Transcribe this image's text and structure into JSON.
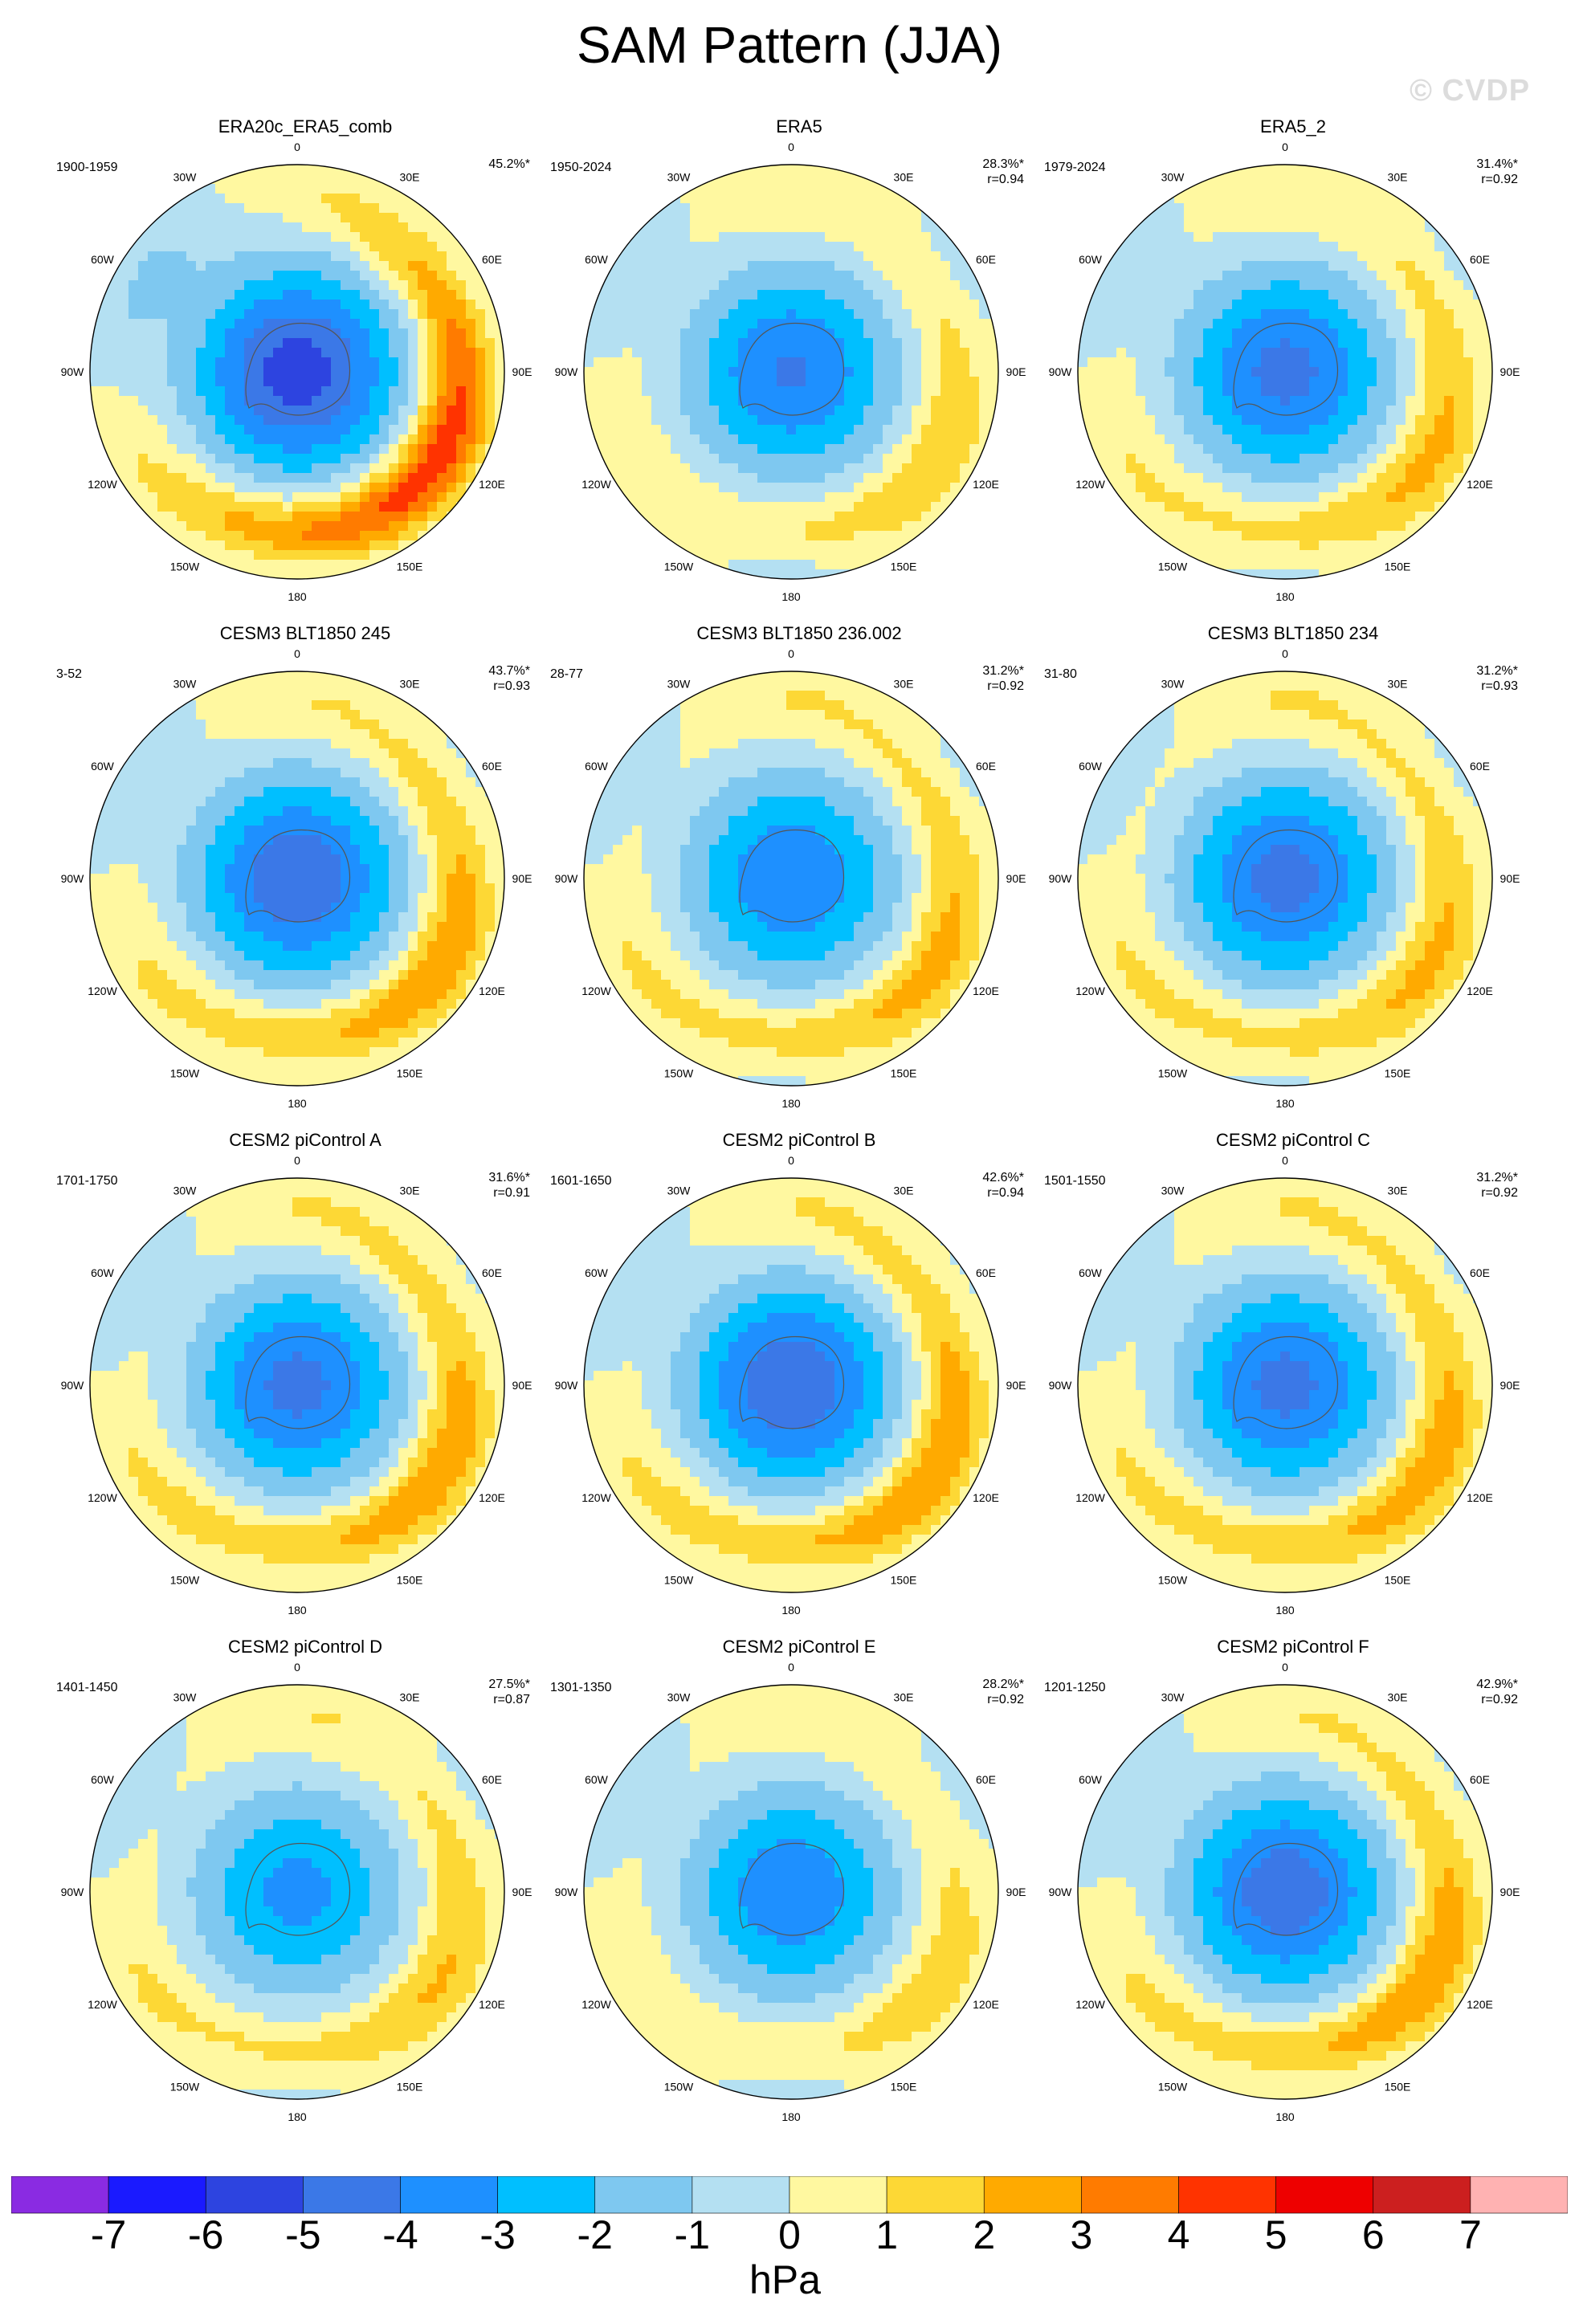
{
  "title": "SAM Pattern (JJA)",
  "watermark": "© CVDP",
  "longitude_labels": [
    "0",
    "30E",
    "60E",
    "90E",
    "120E",
    "150E",
    "180",
    "150W",
    "120W",
    "90W",
    "60W",
    "30W"
  ],
  "panels": [
    {
      "title": "ERA20c_ERA5_comb",
      "period": "1900-1959",
      "stats": "45.2%*",
      "pattern": {
        "c": -5.4,
        "w": 3.6,
        "i": 0.72
      }
    },
    {
      "title": "ERA5",
      "period": "1950-2024",
      "stats": "28.3%*\nr=0.94",
      "pattern": {
        "c": -4.1,
        "w": 1.8,
        "i": 0.42
      }
    },
    {
      "title": "ERA5_2",
      "period": "1979-2024",
      "stats": "31.4%*\nr=0.92",
      "pattern": {
        "c": -4.3,
        "w": 2.2,
        "i": 0.45
      }
    },
    {
      "title": "CESM3 BLT1850 245",
      "period": "3-52",
      "stats": "43.7%*\nr=0.93",
      "pattern": {
        "c": -4.7,
        "w": 2.6,
        "i": 0.5
      }
    },
    {
      "title": "CESM3 BLT1850 236.002",
      "period": "28-77",
      "stats": "31.2%*\nr=0.92",
      "pattern": {
        "c": -3.9,
        "w": 2.4,
        "i": 0.4
      }
    },
    {
      "title": "CESM3 BLT1850 234",
      "period": "31-80",
      "stats": "31.2%*\nr=0.93",
      "pattern": {
        "c": -4.4,
        "w": 2.4,
        "i": 0.36
      }
    },
    {
      "title": "CESM2 piControl A",
      "period": "1701-1750",
      "stats": "31.6%*\nr=0.91",
      "pattern": {
        "c": -4.3,
        "w": 2.7,
        "i": 0.45
      }
    },
    {
      "title": "CESM2 piControl B",
      "period": "1601-1650",
      "stats": "42.6%*\nr=0.94",
      "pattern": {
        "c": -4.8,
        "w": 2.8,
        "i": 0.48
      }
    },
    {
      "title": "CESM2 piControl C",
      "period": "1501-1550",
      "stats": "31.2%*\nr=0.92",
      "pattern": {
        "c": -4.3,
        "w": 2.6,
        "i": 0.42
      }
    },
    {
      "title": "CESM2 piControl D",
      "period": "1401-1450",
      "stats": "27.5%*\nr=0.87",
      "pattern": {
        "c": -3.3,
        "w": 2.1,
        "i": 0.38
      }
    },
    {
      "title": "CESM2 piControl E",
      "period": "1301-1350",
      "stats": "28.2%*\nr=0.92",
      "pattern": {
        "c": -3.8,
        "w": 1.6,
        "i": 0.36
      }
    },
    {
      "title": "CESM2 piControl F",
      "period": "1201-1250",
      "stats": "42.9%*\nr=0.92",
      "pattern": {
        "c": -4.6,
        "w": 2.6,
        "i": 0.5
      }
    }
  ],
  "colorbar": {
    "labels": [
      "-7",
      "-6",
      "-5",
      "-4",
      "-3",
      "-2",
      "-1",
      "0",
      "1",
      "2",
      "3",
      "4",
      "5",
      "6",
      "7"
    ],
    "colors": [
      "#8a2be2",
      "#1a1aff",
      "#2d44e0",
      "#3b78e7",
      "#1e90ff",
      "#00bfff",
      "#7ec8f0",
      "#b4e0f2",
      "#fff8a0",
      "#fdd835",
      "#ffaa00",
      "#ff7b00",
      "#ff3300",
      "#ee0000",
      "#cc1f1f",
      "#ffb2b2"
    ],
    "units": "hPa"
  }
}
